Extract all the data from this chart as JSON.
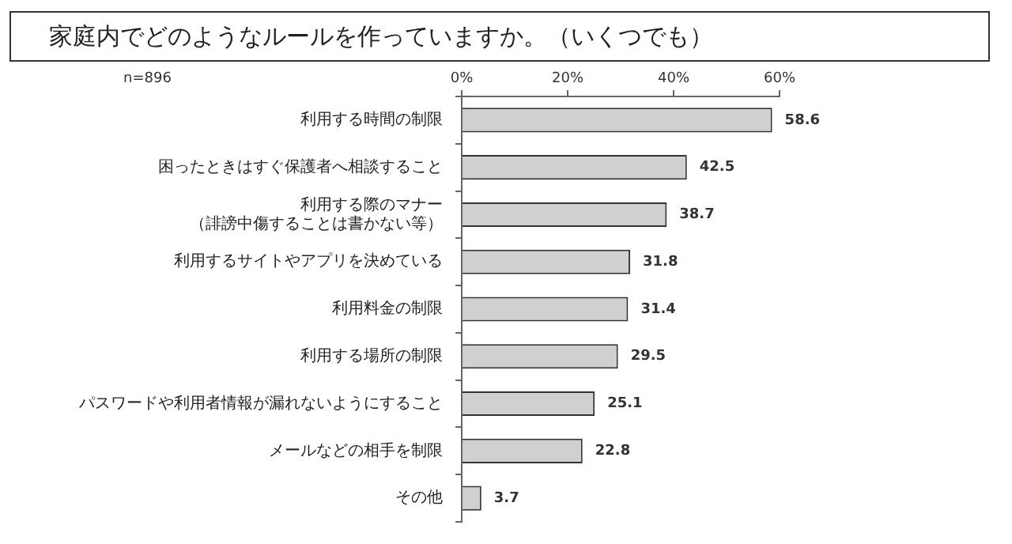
{
  "chart_data": {
    "type": "bar",
    "orientation": "horizontal",
    "title": "家庭内でどのようなルールを作っていますか。（いくつでも）",
    "annotations": [
      "n=896"
    ],
    "categories": [
      "利用する時間の制限",
      "困ったときはすぐ保護者へ相談すること",
      "利用する際のマナー（誹謗中傷することは書かない等）",
      "利用するサイトやアプリを決めている",
      "利用料金の制限",
      "利用する場所の制限",
      "パスワードや利用者情報が漏れないようにすること",
      "メールなどの相手を制限",
      "その他"
    ],
    "values": [
      58.6,
      42.5,
      38.7,
      31.8,
      31.4,
      29.5,
      25.1,
      22.8,
      3.7
    ],
    "color": "#d0d0d0",
    "xlim": [
      0,
      60
    ],
    "xticks": [
      {
        "value": 0,
        "label": "0%"
      },
      {
        "value": 20,
        "label": "20%"
      },
      {
        "value": 40,
        "label": "40%"
      },
      {
        "value": 60,
        "label": "60%"
      }
    ],
    "data_labels": true
  }
}
